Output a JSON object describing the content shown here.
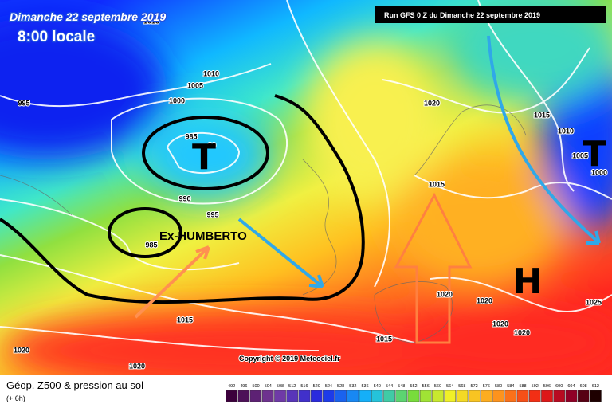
{
  "header": {
    "date": "Dimanche 22 septembre 2019",
    "time": "8:00 locale",
    "run": "Run GFS 0 Z du Dimanche 22 septembre 2019"
  },
  "map": {
    "isobar_labels": [
      1015,
      995,
      1010,
      1005,
      1000,
      985,
      80,
      990,
      995,
      985,
      1015,
      1020,
      1020,
      1020,
      1015,
      1010,
      1005,
      1000,
      1015,
      1020,
      1020,
      1020,
      1020,
      1025,
      1015
    ],
    "symbols": [
      "T",
      "T",
      "H"
    ],
    "storm": "Ex-HUMBERTO",
    "copyright": "Copyright © 2019 Meteociel.fr"
  },
  "footer": {
    "title": "Géop. Z500 & pression au sol",
    "lead": "(+ 6h)",
    "colorbar": [
      492,
      496,
      500,
      504,
      508,
      512,
      516,
      520,
      524,
      528,
      532,
      536,
      540,
      544,
      548,
      552,
      556,
      560,
      564,
      568,
      572,
      576,
      580,
      584,
      588,
      592,
      596,
      600,
      604,
      608,
      612
    ]
  }
}
